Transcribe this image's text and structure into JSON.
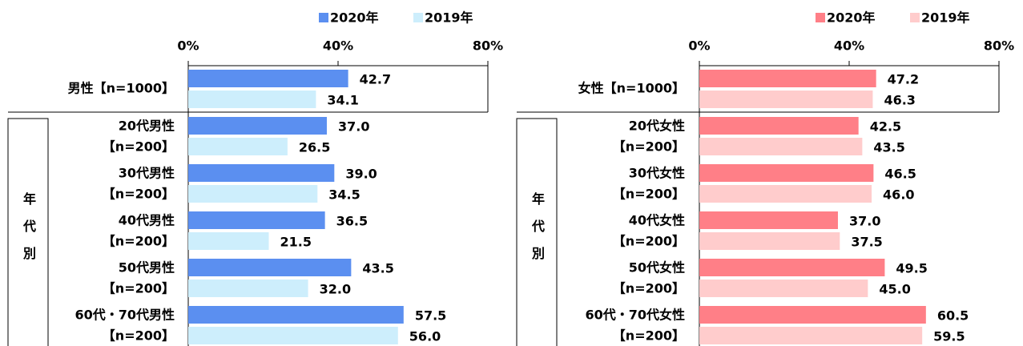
{
  "chart_data": [
    {
      "type": "bar",
      "orientation": "horizontal",
      "group_label": "年代別",
      "categories": [
        [
          "男性【n=1000】"
        ],
        [
          "20代男性",
          "【n=200】"
        ],
        [
          "30代男性",
          "【n=200】"
        ],
        [
          "40代男性",
          "【n=200】"
        ],
        [
          "50代男性",
          "【n=200】"
        ],
        [
          "60代・70代男性",
          "【n=200】"
        ]
      ],
      "series": [
        {
          "name": "2020年",
          "color": "#5b8ff0",
          "values": [
            42.7,
            37,
            39,
            36.5,
            43.5,
            57.5
          ],
          "value_labels": [
            "42.7",
            "37.0",
            "39.0",
            "36.5",
            "43.5",
            "57.5"
          ]
        },
        {
          "name": "2019年",
          "color": "#cdeefc",
          "values": [
            34.1,
            26.5,
            34.5,
            21.5,
            32,
            56
          ],
          "value_labels": [
            "34.1",
            "26.5",
            "34.5",
            "21.5",
            "32.0",
            "56.0"
          ]
        }
      ],
      "xlim": [
        0,
        80
      ],
      "xticks": [
        {
          "value": 0,
          "label": "0%"
        },
        {
          "value": 40,
          "label": "40%"
        },
        {
          "value": 80,
          "label": "80%"
        }
      ]
    },
    {
      "type": "bar",
      "orientation": "horizontal",
      "group_label": "年代別",
      "categories": [
        [
          "女性【n=1000】"
        ],
        [
          "20代女性",
          "【n=200】"
        ],
        [
          "30代女性",
          "【n=200】"
        ],
        [
          "40代女性",
          "【n=200】"
        ],
        [
          "50代女性",
          "【n=200】"
        ],
        [
          "60代・70代女性",
          "【n=200】"
        ]
      ],
      "series": [
        {
          "name": "2020年",
          "color": "#ff7f87",
          "values": [
            47.2,
            42.5,
            46.5,
            37,
            49.5,
            60.5
          ],
          "value_labels": [
            "47.2",
            "42.5",
            "46.5",
            "37.0",
            "49.5",
            "60.5"
          ]
        },
        {
          "name": "2019年",
          "color": "#ffcccc",
          "values": [
            46.3,
            43.5,
            46,
            37.5,
            45,
            59.5
          ],
          "value_labels": [
            "46.3",
            "43.5",
            "46.0",
            "37.5",
            "45.0",
            "59.5"
          ]
        }
      ],
      "xlim": [
        0,
        80
      ],
      "xticks": [
        {
          "value": 0,
          "label": "0%"
        },
        {
          "value": 40,
          "label": "40%"
        },
        {
          "value": 80,
          "label": "80%"
        }
      ]
    }
  ]
}
